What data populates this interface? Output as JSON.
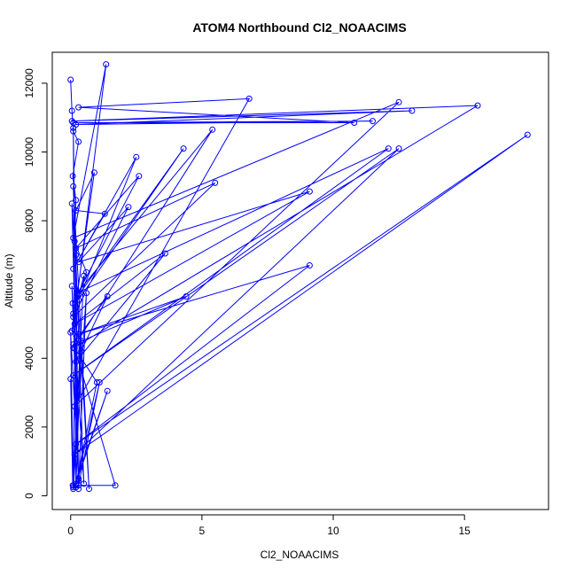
{
  "chart_data": {
    "type": "line",
    "title": "ATOM4 Northbound Cl2_NOAACIMS",
    "xlabel": "Cl2_NOAACIMS",
    "ylabel": "Altitude (m)",
    "xlim": [
      -0.7,
      18.2
    ],
    "ylim": [
      -400,
      12900
    ],
    "xticks": [
      0,
      5,
      10,
      15
    ],
    "yticks": [
      0,
      2000,
      4000,
      6000,
      8000,
      10000,
      12000
    ],
    "grid": false,
    "legend": "none",
    "series": [
      {
        "color": "#0000ff",
        "marker": "open-circle",
        "x": [
          0.0,
          0.05,
          0.1,
          0.3,
          0.08,
          0.2,
          0.15,
          0.6,
          0.1,
          0.4,
          0.05,
          0.9,
          0.2,
          1.3,
          0.1,
          2.5,
          0.3,
          4.3,
          0.08,
          2.6,
          0.2,
          5.5,
          0.1,
          2.2,
          0.3,
          9.1,
          0.15,
          3.6,
          0.2,
          1.4,
          0.1,
          4.4,
          0.3,
          9.1,
          0.2,
          17.4,
          0.15,
          12.5,
          0.1,
          12.1,
          0.25,
          5.4,
          0.1,
          15.5,
          0.05,
          13.0,
          0.2,
          11.5,
          0.1,
          10.8,
          0.3,
          6.8,
          0.15,
          12.5,
          0.1,
          1.35,
          0.2,
          0.5,
          0.1,
          0.0,
          0.08,
          0.4,
          0.2,
          1.1,
          0.3,
          1.7,
          0.15,
          1.0,
          0.2,
          1.4,
          0.1,
          0.6,
          0.3,
          0.2,
          0.1,
          0.0,
          0.3,
          0.05,
          0.5,
          0.1,
          0.7,
          0.05,
          0.3,
          0.1,
          0.2
        ],
        "y": [
          12100,
          11200,
          10600,
          10300,
          9300,
          8600,
          7400,
          6500,
          5300,
          4200,
          4800,
          9400,
          8300,
          8200,
          6600,
          9850,
          5700,
          10100,
          5600,
          9300,
          7200,
          9100,
          5200,
          8400,
          6800,
          8850,
          5000,
          7050,
          3900,
          5800,
          4400,
          5800,
          4700,
          6700,
          1500,
          10500,
          1200,
          10100,
          3500,
          10100,
          5900,
          10650,
          4300,
          11350,
          10900,
          11200,
          10800,
          10900,
          10850,
          10850,
          11300,
          11550,
          2600,
          11450,
          7500,
          12550,
          5500,
          6400,
          300,
          3400,
          300,
          4500,
          300,
          3300,
          300,
          300,
          4300,
          3300,
          350,
          3050,
          200,
          5900,
          200,
          7000,
          250,
          4750,
          450,
          6100,
          350,
          9000,
          200,
          8500,
          500,
          10700,
          250
        ]
      }
    ]
  }
}
